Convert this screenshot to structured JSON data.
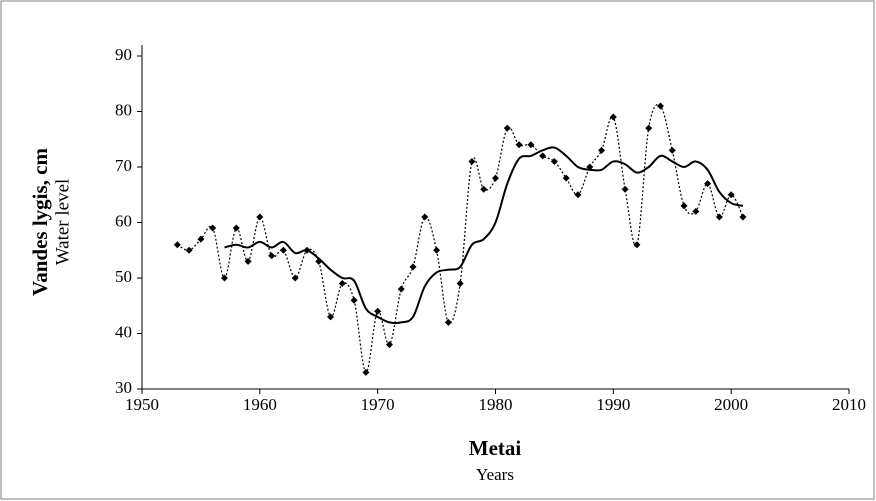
{
  "chart_data": {
    "type": "line",
    "y_label": "Vandes lygis, cm",
    "y_label_sub": "Water level",
    "x_label": "Metai",
    "x_label_sub": "Years",
    "xlim": [
      1950,
      2010
    ],
    "xticks": [
      1950,
      1960,
      1970,
      1980,
      1990,
      2000,
      2010
    ],
    "ylim": [
      30,
      90
    ],
    "yticks": [
      30,
      40,
      50,
      60,
      70,
      80,
      90
    ],
    "grid": false,
    "series": [
      {
        "color": "#000000",
        "style": "dotted",
        "markers": true,
        "x": [
          1953,
          1954,
          1955,
          1956,
          1957,
          1958,
          1959,
          1960,
          1961,
          1962,
          1963,
          1964,
          1965,
          1966,
          1967,
          1968,
          1969,
          1970,
          1971,
          1972,
          1973,
          1974,
          1975,
          1976,
          1977,
          1978,
          1979,
          1980,
          1981,
          1982,
          1983,
          1984,
          1985,
          1986,
          1987,
          1988,
          1989,
          1990,
          1991,
          1992,
          1993,
          1994,
          1995,
          1996,
          1997,
          1998,
          1999,
          2000,
          2001
        ],
        "values": [
          56,
          55,
          57,
          59,
          50,
          59,
          53,
          61,
          54,
          55,
          50,
          55,
          53,
          43,
          49,
          46,
          33,
          44,
          38,
          48,
          52,
          61,
          55,
          42,
          49,
          71,
          66,
          68,
          77,
          74,
          74,
          72,
          71,
          68,
          65,
          70,
          73,
          79,
          66,
          56,
          77,
          81,
          73,
          63,
          62,
          67,
          61,
          65,
          61
        ]
      },
      {
        "color": "#000000",
        "style": "solid",
        "markers": false,
        "x": [
          1957,
          1958,
          1959,
          1960,
          1961,
          1962,
          1963,
          1964,
          1965,
          1966,
          1967,
          1968,
          1969,
          1970,
          1971,
          1972,
          1973,
          1974,
          1975,
          1976,
          1977,
          1978,
          1979,
          1980,
          1981,
          1982,
          1983,
          1984,
          1985,
          1986,
          1987,
          1988,
          1989,
          1990,
          1991,
          1992,
          1993,
          1994,
          1995,
          1996,
          1997,
          1998,
          1999,
          2000,
          2001
        ],
        "values": [
          55.5,
          56,
          55.5,
          56.5,
          55.5,
          56.5,
          54.5,
          55,
          53.5,
          51.5,
          50,
          49.5,
          44.5,
          43,
          42,
          42,
          43,
          48.5,
          51,
          51.5,
          52,
          56,
          57,
          60,
          67,
          71.5,
          72,
          73,
          73.5,
          72,
          70,
          69.5,
          69.5,
          71,
          70.5,
          69,
          70,
          72,
          71,
          70,
          71,
          69.5,
          65.5,
          63.5,
          63
        ]
      }
    ]
  }
}
